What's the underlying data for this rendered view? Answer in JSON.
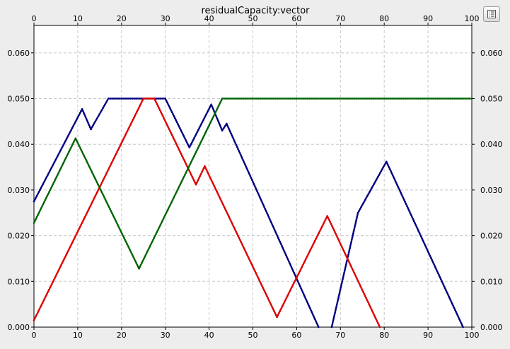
{
  "chart_data": {
    "type": "line",
    "title": "residualCapacity:vector",
    "xlim": [
      0,
      100
    ],
    "ylim": [
      0,
      0.066
    ],
    "x_ticks": [
      "0",
      "10",
      "20",
      "30",
      "40",
      "50",
      "60",
      "70",
      "80",
      "90",
      "100"
    ],
    "y_ticks": [
      "0.000",
      "0.010",
      "0.020",
      "0.030",
      "0.040",
      "0.050",
      "0.060"
    ],
    "grid": true,
    "series": [
      {
        "color": "#000080",
        "points": [
          [
            0,
            0.0275
          ],
          [
            11,
            0.0477
          ],
          [
            13,
            0.0433
          ],
          [
            17,
            0.05
          ],
          [
            30,
            0.05
          ],
          [
            35.5,
            0.0393
          ],
          [
            40.5,
            0.0487
          ],
          [
            43,
            0.043
          ],
          [
            44,
            0.0445
          ],
          [
            65,
            0
          ]
        ],
        "style": "solid"
      },
      {
        "color": "#000080",
        "points": [
          [
            68,
            0
          ],
          [
            74,
            0.025
          ],
          [
            80.5,
            0.0362
          ],
          [
            98,
            0
          ]
        ],
        "style": "solid"
      },
      {
        "color": "#dd0000",
        "points": [
          [
            0,
            0.0015
          ],
          [
            25,
            0.05
          ],
          [
            27.5,
            0.05
          ],
          [
            37,
            0.0312
          ],
          [
            39,
            0.0352
          ],
          [
            55.5,
            0.0022
          ],
          [
            67,
            0.0243
          ],
          [
            79,
            0
          ]
        ],
        "style": "solid"
      },
      {
        "color": "#006400",
        "points": [
          [
            0,
            0.0228
          ],
          [
            9.5,
            0.0413
          ],
          [
            24,
            0.0128
          ],
          [
            43,
            0.05
          ],
          [
            100,
            0.05
          ]
        ],
        "style": "solid"
      }
    ]
  },
  "menu": {
    "icon": "list-icon"
  }
}
